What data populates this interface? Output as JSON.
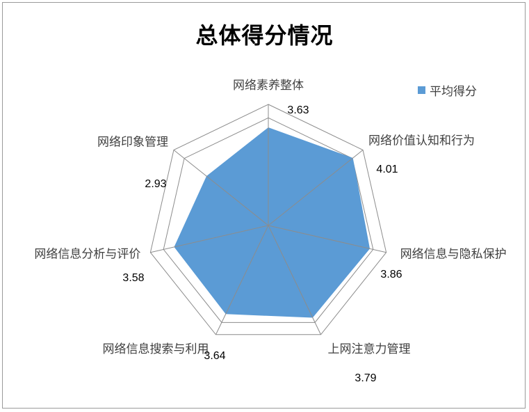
{
  "chart_data": {
    "type": "radar",
    "title": "总体得分情况",
    "categories": [
      "网络素养整体",
      "网络价值认知和行为",
      "网络信息与隐私保护",
      "上网注意力管理",
      "网络信息搜索与利用",
      "网络信息分析与评价",
      "网络印象管理"
    ],
    "series": [
      {
        "name": "平均得分",
        "values": [
          3.63,
          4.01,
          3.86,
          3.79,
          3.64,
          3.58,
          2.93
        ],
        "color": "#5b9bd5"
      }
    ],
    "value_labels": [
      "3.63",
      "4.01",
      "3.86",
      "3.79",
      "3.64",
      "3.58",
      "2.93"
    ],
    "rlim": [
      0,
      4.5
    ],
    "grid_levels": [
      4,
      4.5
    ],
    "legend": "top-right"
  }
}
